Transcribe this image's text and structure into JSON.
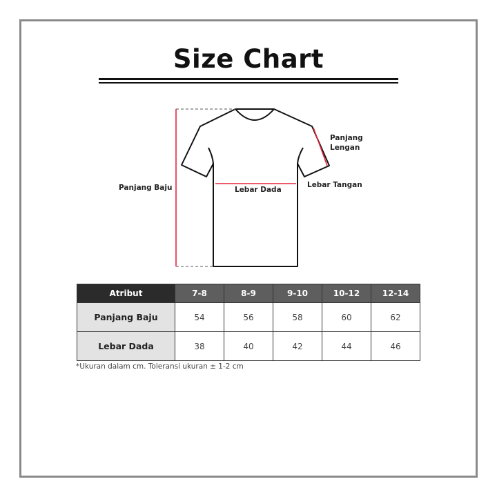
{
  "title": "Size Chart",
  "diagram_labels": {
    "panjang_baju": "Panjang Baju",
    "panjang_lengan_1": "Panjang",
    "panjang_lengan_2": "Lengan",
    "lebar_tangan": "Lebar Tangan",
    "lebar_dada": "Lebar Dada"
  },
  "colors": {
    "measure_line": "#e8263c",
    "header_dark": "#2b2b2b",
    "header": "#5e5e5e",
    "row_header": "#e3e3e3"
  },
  "table": {
    "headers": [
      "Atribut",
      "7-8",
      "8-9",
      "9-10",
      "10-12",
      "12-14"
    ],
    "rows": [
      {
        "label": "Panjang Baju",
        "values": [
          "54",
          "56",
          "58",
          "60",
          "62"
        ]
      },
      {
        "label": "Lebar Dada",
        "values": [
          "38",
          "40",
          "42",
          "44",
          "46"
        ]
      }
    ]
  },
  "note": "*Ukuran dalam cm. Toleransi ukuran ± 1-2 cm"
}
